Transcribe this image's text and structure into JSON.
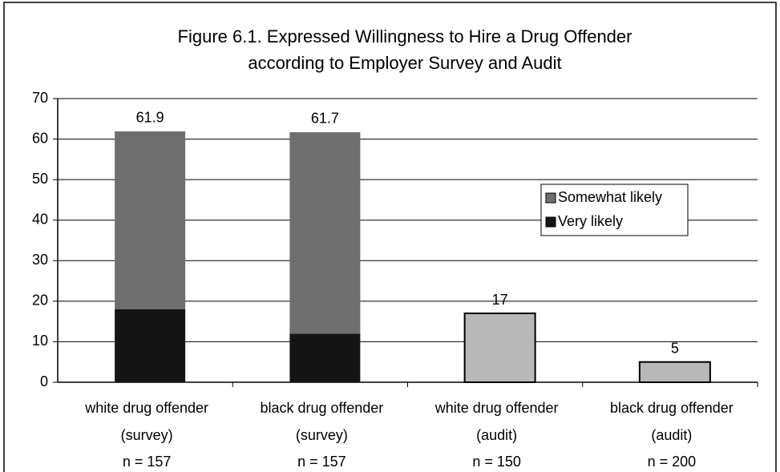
{
  "chart_data": {
    "type": "stacked_bar",
    "title": [
      "Figure 6.1. Expressed Willingness to Hire a Drug Offender",
      "according to Employer Survey and Audit"
    ],
    "categories": [
      [
        "white drug offender",
        "(survey)"
      ],
      [
        "black drug offender",
        "(survey)"
      ],
      [
        "white drug offender",
        "(audit)"
      ],
      [
        "black drug offender",
        "(audit)"
      ]
    ],
    "sample_sizes": [
      "n = 157",
      "n = 157",
      "n = 150",
      "n = 200"
    ],
    "series": [
      {
        "name": "Very likely",
        "color": "#141414",
        "values": [
          18,
          12,
          null,
          null
        ]
      },
      {
        "name": "Somewhat likely",
        "color": "#6e6e6e",
        "values": [
          43.9,
          49.7,
          null,
          null
        ]
      },
      {
        "color": "#b8b8b8",
        "values": [
          null,
          null,
          17,
          5
        ]
      }
    ],
    "total_labels": [
      61.9,
      61.7,
      17,
      5
    ],
    "ylim": [
      0,
      70
    ],
    "yticks": [
      0,
      10,
      20,
      30,
      40,
      50,
      60,
      70
    ],
    "grid": true,
    "legend": "right"
  }
}
